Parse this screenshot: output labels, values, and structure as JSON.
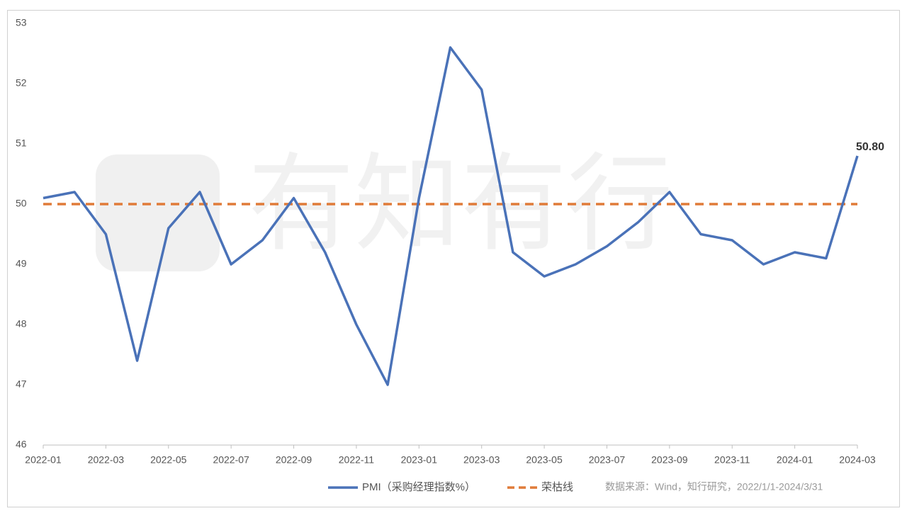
{
  "chart_data": {
    "type": "line",
    "categories": [
      "2022-01",
      null,
      "2022-03",
      null,
      "2022-05",
      null,
      "2022-07",
      null,
      "2022-09",
      null,
      "2022-11",
      null,
      "2023-01",
      null,
      "2023-03",
      null,
      "2023-05",
      null,
      "2023-07",
      null,
      "2023-09",
      null,
      "2023-11",
      null,
      "2024-01",
      null,
      "2024-03"
    ],
    "series": [
      {
        "name": "PMI（采购经理指数%）",
        "color": "#4a72b8",
        "style": "solid",
        "values": [
          50.1,
          50.2,
          49.5,
          47.4,
          49.6,
          50.2,
          49.0,
          49.4,
          50.1,
          49.2,
          48.0,
          47.0,
          50.1,
          52.6,
          51.9,
          49.2,
          48.8,
          49.0,
          49.3,
          49.7,
          50.2,
          49.5,
          49.4,
          49.0,
          49.2,
          49.1,
          50.8
        ],
        "value_labels": [
          null,
          null,
          null,
          null,
          null,
          null,
          null,
          null,
          null,
          null,
          null,
          null,
          null,
          null,
          null,
          null,
          null,
          null,
          null,
          null,
          null,
          null,
          null,
          null,
          null,
          null,
          "50.80"
        ]
      },
      {
        "name": "荣枯线",
        "color": "#e07b39",
        "style": "dashed",
        "values": [
          50,
          50,
          50,
          50,
          50,
          50,
          50,
          50,
          50,
          50,
          50,
          50,
          50,
          50,
          50,
          50,
          50,
          50,
          50,
          50,
          50,
          50,
          50,
          50,
          50,
          50,
          50
        ]
      }
    ],
    "ylim": [
      46,
      53
    ],
    "yticks": [
      46,
      47,
      48,
      49,
      50,
      51,
      52,
      53
    ],
    "grid": false,
    "source": "数据来源：Wind，知行研究，2022/1/1-2024/3/31",
    "watermark": "有知有行"
  }
}
